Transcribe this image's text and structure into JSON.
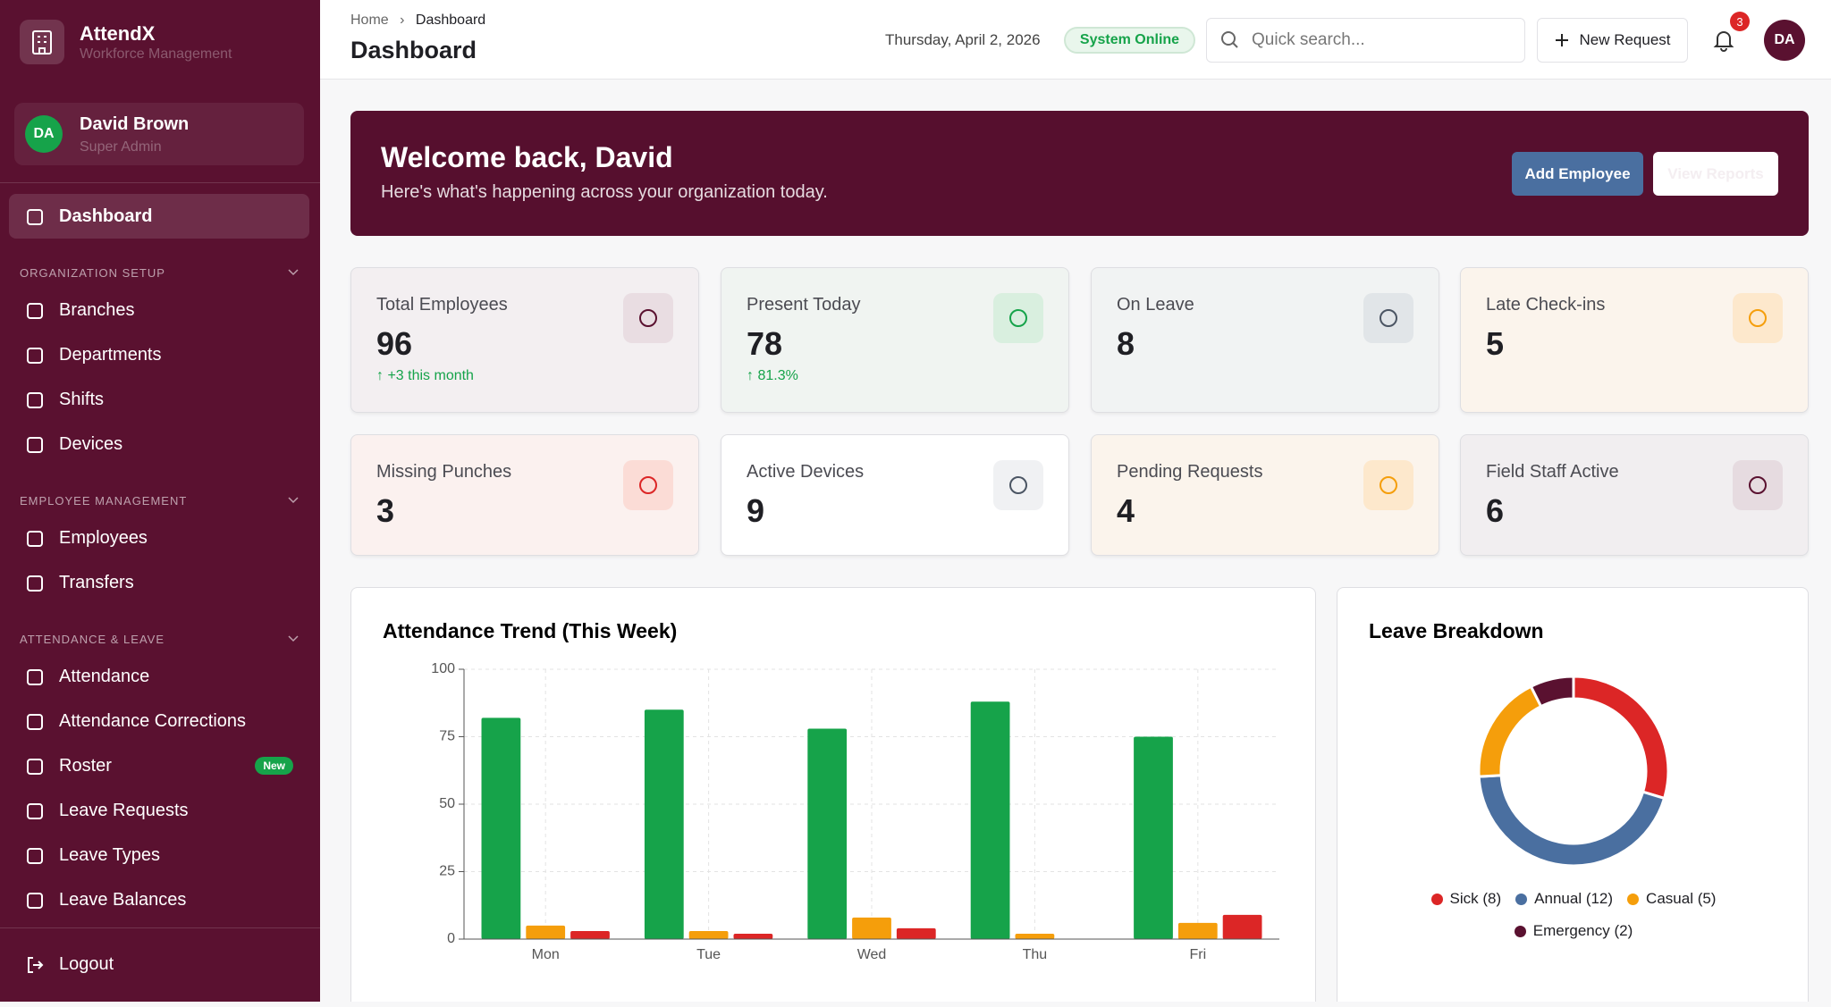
{
  "sidebar": {
    "brand": "AttendX",
    "tagline": "Workforce Management",
    "user": {
      "initials": "DA",
      "name": "David Brown",
      "role": "Super Admin"
    },
    "home": "Dashboard",
    "sections": [
      {
        "title": "ORGANIZATION SETUP",
        "items": [
          {
            "label": "Branches"
          },
          {
            "label": "Departments"
          },
          {
            "label": "Shifts"
          },
          {
            "label": "Devices"
          }
        ]
      },
      {
        "title": "EMPLOYEE MANAGEMENT",
        "items": [
          {
            "label": "Employees"
          },
          {
            "label": "Transfers"
          }
        ]
      },
      {
        "title": "ATTENDANCE & LEAVE",
        "items": [
          {
            "label": "Attendance"
          },
          {
            "label": "Attendance Corrections"
          },
          {
            "label": "Roster",
            "badge": "New"
          },
          {
            "label": "Leave Requests"
          },
          {
            "label": "Leave Types"
          },
          {
            "label": "Leave Balances"
          }
        ]
      }
    ],
    "logout": "Logout"
  },
  "header": {
    "breadcrumb": [
      "Home",
      "Dashboard"
    ],
    "title": "Dashboard",
    "date": "Thursday, April 2, 2026",
    "status": "System Online",
    "search": "Quick search...",
    "new_request": "New Request",
    "notifications": 3,
    "avatar": "DA"
  },
  "banner": {
    "title": "Welcome back, David",
    "subtitle": "Here's what's happening across your organization today.",
    "primary": "Add Employee",
    "secondary": "View Reports"
  },
  "stats": [
    {
      "label": "Total Employees",
      "value": 96,
      "note": "+3 this month"
    },
    {
      "label": "Present Today",
      "value": 78,
      "note": "81.3%"
    },
    {
      "label": "On Leave",
      "value": 8
    },
    {
      "label": "Late Check-ins",
      "value": 5
    },
    {
      "label": "Missing Punches",
      "value": 3
    },
    {
      "label": "Active Devices",
      "value": 9
    },
    {
      "label": "Pending Requests",
      "value": 4
    },
    {
      "label": "Field Staff Active",
      "value": 6
    }
  ],
  "chart_data": [
    {
      "type": "bar",
      "title": "Attendance Trend (This Week)",
      "categories": [
        "Mon",
        "Tue",
        "Wed",
        "Thu",
        "Fri"
      ],
      "series": [
        {
          "color": "#16a34a",
          "values": [
            82,
            85,
            78,
            88,
            75
          ]
        },
        {
          "color": "#f59e0b",
          "values": [
            5,
            3,
            8,
            2,
            6
          ]
        },
        {
          "color": "#dc2626",
          "values": [
            3,
            2,
            4,
            0,
            9
          ]
        }
      ],
      "ylim": [
        0,
        100
      ],
      "yticks": [
        0,
        25,
        50,
        75,
        100
      ],
      "grid": true
    },
    {
      "type": "donut",
      "title": "Leave Breakdown",
      "categories": [
        "Sick (8)",
        "Annual (12)",
        "Casual (5)",
        "Emergency (2)"
      ],
      "values": [
        8,
        12,
        5,
        2
      ],
      "colors": [
        "#dc2626",
        "#4a6fa0",
        "#f59e0b",
        "#5a1130"
      ]
    }
  ]
}
